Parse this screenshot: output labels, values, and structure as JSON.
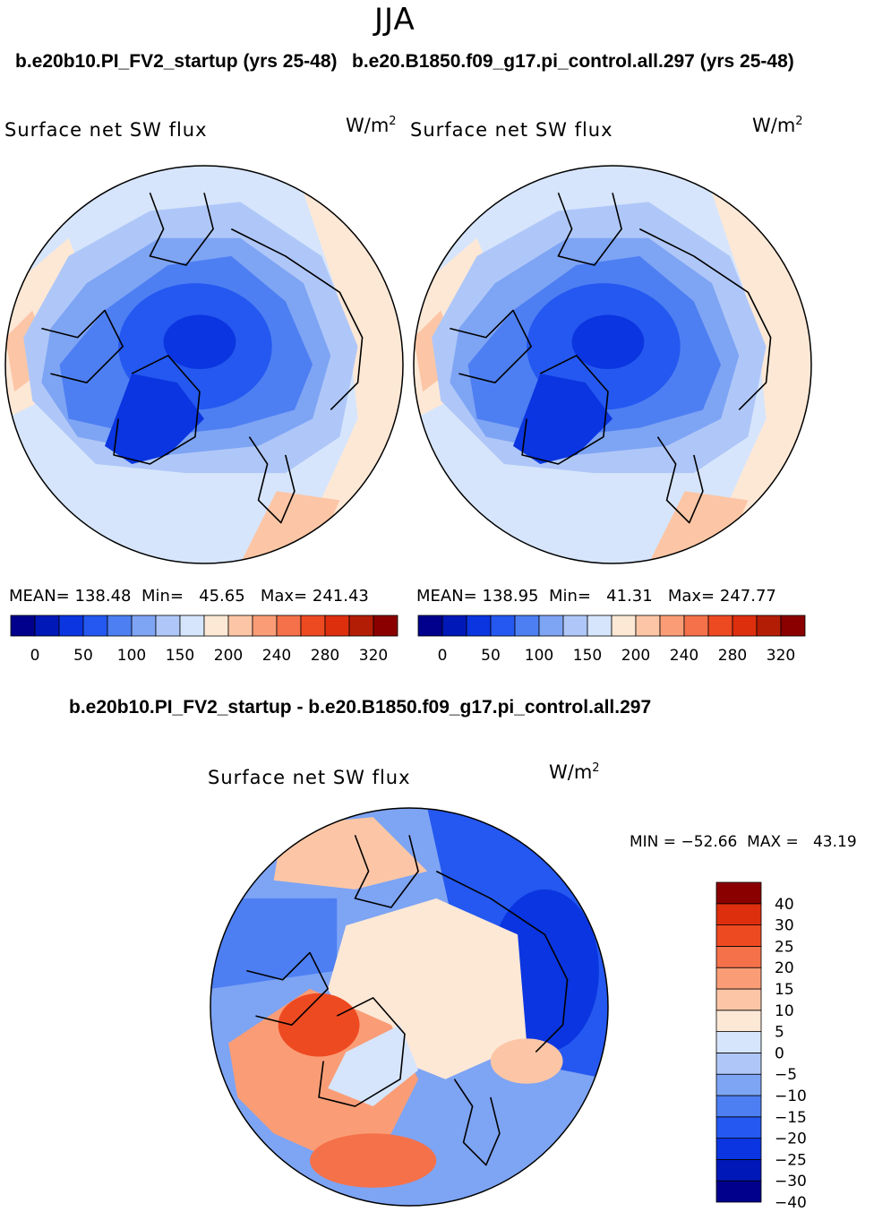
{
  "page_title": "JJA",
  "colors": {
    "land_outline": "#000000",
    "c1": "#00008c",
    "c2": "#0018b8",
    "c3": "#0a35e0",
    "c4": "#2458f0",
    "c5": "#4d7ff2",
    "c6": "#7ea4f4",
    "c7": "#afc7f8",
    "c8": "#d6e5fb",
    "w1": "#fde8d6",
    "w2": "#fcc6a6",
    "w3": "#fa9d76",
    "w4": "#f5714a",
    "w5": "#ee4a22",
    "w6": "#dd2f0e",
    "w7": "#b41d05",
    "w8": "#8a0000"
  },
  "chart_data": [
    {
      "type": "contour-map",
      "projection": "north-polar-stereographic",
      "run_title": "b.e20b10.PI_FV2_startup (yrs 25-48)",
      "variable": "Surface net SW flux",
      "units": "W/m",
      "units_exp": "2",
      "stats": {
        "mean_label": "MEAN=",
        "mean": "138.48",
        "min_label": "Min=",
        "min": "45.65",
        "max_label": "Max=",
        "max": "241.43"
      },
      "colorbar_ticks": [
        "0",
        "50",
        "100",
        "150",
        "200",
        "240",
        "280",
        "320"
      ],
      "levels": [
        0,
        25,
        50,
        75,
        100,
        125,
        150,
        175,
        200,
        220,
        240,
        260,
        280,
        300,
        320
      ]
    },
    {
      "type": "contour-map",
      "projection": "north-polar-stereographic",
      "run_title": "b.e20.B1850.f09_g17.pi_control.all.297 (yrs 25-48)",
      "variable": "Surface net SW flux",
      "units": "W/m",
      "units_exp": "2",
      "stats": {
        "mean_label": "MEAN=",
        "mean": "138.95",
        "min_label": "Min=",
        "min": "41.31",
        "max_label": "Max=",
        "max": "247.77"
      },
      "colorbar_ticks": [
        "0",
        "50",
        "100",
        "150",
        "200",
        "240",
        "280",
        "320"
      ],
      "levels": [
        0,
        25,
        50,
        75,
        100,
        125,
        150,
        175,
        200,
        220,
        240,
        260,
        280,
        300,
        320
      ]
    },
    {
      "type": "contour-map-difference",
      "projection": "north-polar-stereographic",
      "run_title": "b.e20b10.PI_FV2_startup - b.e20.B1850.f09_g17.pi_control.all.297",
      "variable": "Surface net SW flux",
      "units": "W/m",
      "units_exp": "2",
      "minmax_text": "MIN = −52.66  MAX =   43.19",
      "min": -52.66,
      "max": 43.19,
      "colorbar_labels": [
        "40",
        "30",
        "25",
        "20",
        "15",
        "10",
        "5",
        "0",
        "−5",
        "−10",
        "−15",
        "−20",
        "−25",
        "−30",
        "−40"
      ]
    }
  ]
}
